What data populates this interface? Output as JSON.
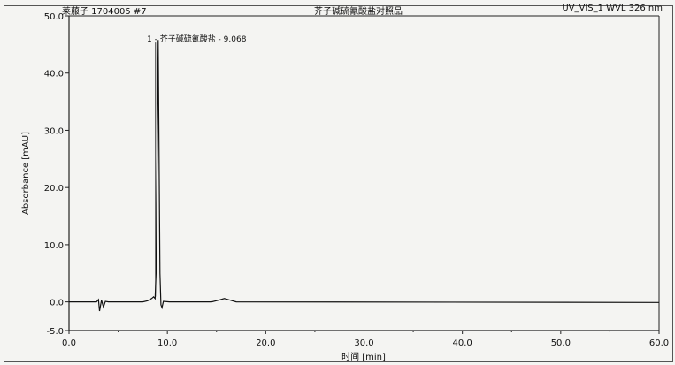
{
  "header": {
    "sample": "莱菔子 1704005 #7",
    "title": "芥子碱硫氰酸盐对照品",
    "channel": "UV_VIS_1 WVL 326 nm"
  },
  "chart_data": {
    "type": "line",
    "title": "芥子碱硫氰酸盐对照品",
    "xlabel": "时间 [min]",
    "ylabel": "Absorbance [mAU]",
    "xlim": [
      0,
      60
    ],
    "ylim": [
      -5,
      50
    ],
    "xticks": [
      "0.0",
      "10.0",
      "20.0",
      "30.0",
      "40.0",
      "50.0",
      "60.0"
    ],
    "yticks": [
      "-5.0",
      "0.0",
      "10.0",
      "20.0",
      "30.0",
      "40.0",
      "50.0"
    ],
    "grid": false,
    "peaks": [
      {
        "label": "1 - 芥子碱硫氰酸盐 - 9.068",
        "time": 9.068,
        "height": 45.8
      }
    ],
    "series": [
      {
        "points": [
          [
            0,
            0
          ],
          [
            2.8,
            0
          ],
          [
            3.0,
            0.4
          ],
          [
            3.1,
            -1.6
          ],
          [
            3.3,
            0.3
          ],
          [
            3.5,
            -0.9
          ],
          [
            3.7,
            0.1
          ],
          [
            4.0,
            0
          ],
          [
            7.5,
            0
          ],
          [
            8.0,
            0.2
          ],
          [
            8.4,
            0.6
          ],
          [
            8.6,
            0.9
          ],
          [
            8.75,
            0.6
          ],
          [
            8.85,
            5
          ],
          [
            9.068,
            45.8
          ],
          [
            9.25,
            5
          ],
          [
            9.35,
            -0.5
          ],
          [
            9.45,
            -1.0
          ],
          [
            9.6,
            0.1
          ],
          [
            10.2,
            0
          ],
          [
            14.5,
            0
          ],
          [
            15.2,
            0.3
          ],
          [
            15.8,
            0.6
          ],
          [
            16.4,
            0.3
          ],
          [
            17.0,
            0
          ],
          [
            60,
            -0.1
          ]
        ]
      }
    ]
  }
}
